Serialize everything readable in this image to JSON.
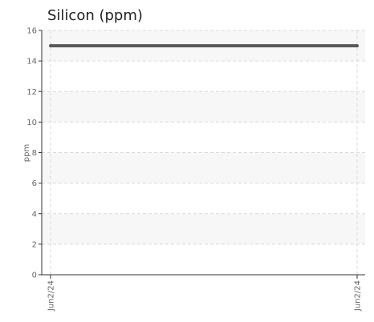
{
  "chart_data": {
    "type": "line",
    "title": "Silicon (ppm)",
    "xlabel": "",
    "ylabel": "ppm",
    "ylim": [
      0,
      16
    ],
    "yticks": [
      0,
      2,
      4,
      6,
      8,
      10,
      12,
      14,
      16
    ],
    "x": [
      "Jun2/24",
      "Jun2/24"
    ],
    "series": [
      {
        "values": [
          15,
          15
        ]
      }
    ],
    "grid": true,
    "legend": "none",
    "colors": {
      "line": "#595959",
      "band": "#f7f7f7",
      "grid": "#d9d9d9",
      "axis": "#333333",
      "text": "#666666",
      "title": "#222222"
    }
  }
}
